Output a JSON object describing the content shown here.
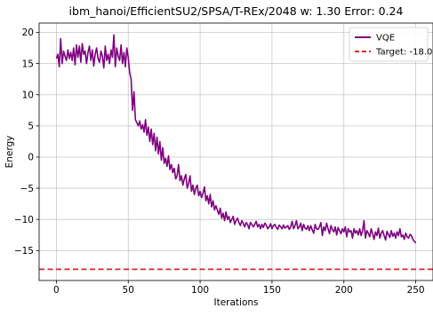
{
  "chart_data": {
    "type": "line",
    "title": "ibm_hanoi/EfficientSU2/SPSA/T-REx/2048 w: 1.30 Error: 0.24",
    "xlabel": "Iterations",
    "ylabel": "Energy",
    "xlim": [
      -12,
      262
    ],
    "ylim": [
      -19.8,
      21.5
    ],
    "xticks": [
      0,
      50,
      100,
      150,
      200,
      250
    ],
    "yticks": [
      -15,
      -10,
      -5,
      0,
      5,
      10,
      15,
      20
    ],
    "grid": true,
    "legend_position": "top-right",
    "series": [
      {
        "name": "VQE",
        "color": "#800080",
        "x": [
          0,
          1,
          2,
          3,
          4,
          5,
          6,
          7,
          8,
          9,
          10,
          11,
          12,
          13,
          14,
          15,
          16,
          17,
          18,
          19,
          20,
          21,
          22,
          23,
          24,
          25,
          26,
          27,
          28,
          29,
          30,
          31,
          32,
          33,
          34,
          35,
          36,
          37,
          38,
          39,
          40,
          41,
          42,
          43,
          44,
          45,
          46,
          47,
          48,
          49,
          50,
          51,
          52,
          53,
          54,
          55,
          56,
          57,
          58,
          59,
          60,
          61,
          62,
          63,
          64,
          65,
          66,
          67,
          68,
          69,
          70,
          71,
          72,
          73,
          74,
          75,
          76,
          77,
          78,
          79,
          80,
          81,
          82,
          83,
          84,
          85,
          86,
          87,
          88,
          89,
          90,
          91,
          92,
          93,
          94,
          95,
          96,
          97,
          98,
          99,
          100,
          101,
          102,
          103,
          104,
          105,
          106,
          107,
          108,
          109,
          110,
          111,
          112,
          113,
          114,
          115,
          116,
          117,
          118,
          119,
          120,
          121,
          122,
          123,
          124,
          125,
          126,
          127,
          128,
          129,
          130,
          131,
          132,
          133,
          134,
          135,
          136,
          137,
          138,
          139,
          140,
          141,
          142,
          143,
          144,
          145,
          146,
          147,
          148,
          149,
          150,
          151,
          152,
          153,
          154,
          155,
          156,
          157,
          158,
          159,
          160,
          161,
          162,
          163,
          164,
          165,
          166,
          167,
          168,
          169,
          170,
          171,
          172,
          173,
          174,
          175,
          176,
          177,
          178,
          179,
          180,
          181,
          182,
          183,
          184,
          185,
          186,
          187,
          188,
          189,
          190,
          191,
          192,
          193,
          194,
          195,
          196,
          197,
          198,
          199,
          200,
          201,
          202,
          203,
          204,
          205,
          206,
          207,
          208,
          209,
          210,
          211,
          212,
          213,
          214,
          215,
          216,
          217,
          218,
          219,
          220,
          221,
          222,
          223,
          224,
          225,
          226,
          227,
          228,
          229,
          230,
          231,
          232,
          233,
          234,
          235,
          236,
          237,
          238,
          239,
          240,
          241,
          242,
          243,
          244,
          245,
          246,
          247,
          248,
          249,
          250
        ],
        "values": [
          15.8,
          16.5,
          14.5,
          19.0,
          15.0,
          17.0,
          16.2,
          15.5,
          17.2,
          15.8,
          16.8,
          15.5,
          17.5,
          14.8,
          18.0,
          16.0,
          17.8,
          15.2,
          18.2,
          16.5,
          17.0,
          15.0,
          16.8,
          17.8,
          15.5,
          17.2,
          14.6,
          16.5,
          17.5,
          15.8,
          15.2,
          17.0,
          16.2,
          14.3,
          17.8,
          15.5,
          16.5,
          15.0,
          17.2,
          16.0,
          19.6,
          14.5,
          17.5,
          16.2,
          15.5,
          18.0,
          15.0,
          16.8,
          14.5,
          17.5,
          16.0,
          13.5,
          12.5,
          7.5,
          10.5,
          6.0,
          5.5,
          5.0,
          5.8,
          4.5,
          5.2,
          4.0,
          6.0,
          3.5,
          4.8,
          2.5,
          4.5,
          2.0,
          3.8,
          1.0,
          3.2,
          0.5,
          2.5,
          -0.5,
          1.5,
          -1.0,
          -0.2,
          -1.5,
          0.2,
          -2.0,
          -1.2,
          -2.5,
          -1.8,
          -3.5,
          -3.0,
          -1.2,
          -3.8,
          -3.0,
          -4.5,
          -3.5,
          -2.8,
          -5.0,
          -4.2,
          -3.0,
          -5.5,
          -4.5,
          -6.0,
          -5.0,
          -4.5,
          -6.2,
          -5.5,
          -6.5,
          -5.8,
          -4.8,
          -7.0,
          -6.2,
          -7.5,
          -6.0,
          -8.0,
          -7.0,
          -8.5,
          -7.8,
          -8.5,
          -9.2,
          -8.2,
          -9.8,
          -9.0,
          -10.2,
          -8.8,
          -10.0,
          -9.5,
          -10.5,
          -10.0,
          -9.5,
          -10.8,
          -10.2,
          -9.8,
          -10.5,
          -11.0,
          -10.2,
          -10.6,
          -11.2,
          -10.5,
          -10.8,
          -11.5,
          -10.5,
          -10.8,
          -11.2,
          -10.8,
          -10.3,
          -11.2,
          -10.8,
          -11.5,
          -10.8,
          -11.3,
          -10.6,
          -10.9,
          -11.5,
          -11.2,
          -10.7,
          -11.5,
          -11.0,
          -10.8,
          -11.3,
          -11.6,
          -10.9,
          -11.2,
          -11.5,
          -10.9,
          -11.4,
          -11.2,
          -11.0,
          -11.6,
          -11.2,
          -10.3,
          -11.5,
          -11.0,
          -10.2,
          -11.5,
          -11.2,
          -10.6,
          -11.8,
          -10.8,
          -11.4,
          -11.6,
          -11.0,
          -11.8,
          -11.0,
          -11.7,
          -12.2,
          -10.8,
          -11.5,
          -11.6,
          -11.2,
          -10.5,
          -12.6,
          -11.2,
          -11.8,
          -10.6,
          -11.5,
          -12.3,
          -11.0,
          -11.6,
          -12.0,
          -11.2,
          -12.5,
          -11.3,
          -11.8,
          -12.3,
          -11.5,
          -12.0,
          -11.2,
          -12.8,
          -11.5,
          -12.0,
          -11.8,
          -13.0,
          -11.5,
          -12.2,
          -11.8,
          -12.5,
          -11.5,
          -12.6,
          -11.8,
          -10.2,
          -13.0,
          -11.8,
          -12.2,
          -12.8,
          -11.5,
          -12.3,
          -13.2,
          -12.0,
          -12.6,
          -11.4,
          -13.0,
          -12.2,
          -11.8,
          -12.6,
          -13.3,
          -11.9,
          -12.4,
          -12.9,
          -11.8,
          -12.7,
          -12.2,
          -13.0,
          -12.0,
          -12.6,
          -11.5,
          -12.8,
          -12.5,
          -13.2,
          -12.2,
          -12.8,
          -13.0,
          -12.4,
          -12.6,
          -13.2,
          -13.5,
          -13.8
        ]
      },
      {
        "name": "Target: -18.0",
        "color": "#d62728",
        "y": -18.0,
        "style": "dashed"
      }
    ]
  }
}
